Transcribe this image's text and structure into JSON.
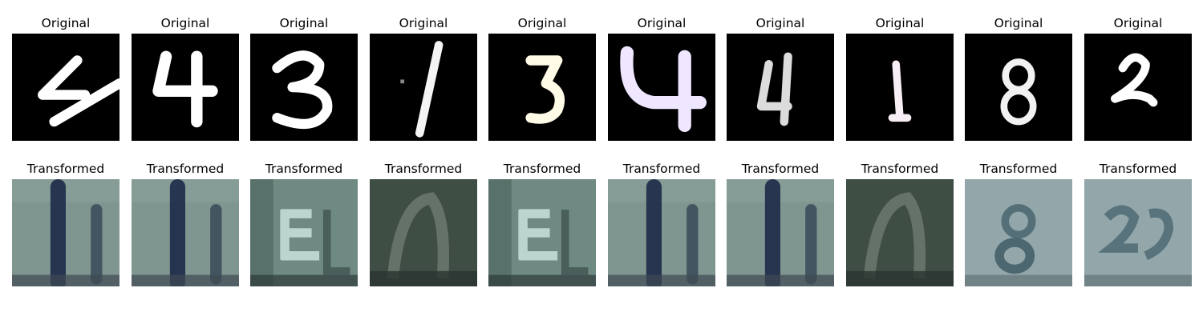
{
  "figure": {
    "rows": [
      {
        "row": "original",
        "panels": [
          {
            "title": "Original",
            "digit": "4",
            "color": "#ffffff"
          },
          {
            "title": "Original",
            "digit": "4",
            "color": "#ffffff"
          },
          {
            "title": "Original",
            "digit": "3",
            "color": "#ffffff"
          },
          {
            "title": "Original",
            "digit": "1",
            "color": "#f4f4f4"
          },
          {
            "title": "Original",
            "digit": "3",
            "color": "#fffbe6"
          },
          {
            "title": "Original",
            "digit": "4",
            "color": "#efe6ff"
          },
          {
            "title": "Original",
            "digit": "4",
            "color": "#dcdcdc"
          },
          {
            "title": "Original",
            "digit": "1",
            "color": "#f8eef6"
          },
          {
            "title": "Original",
            "digit": "8",
            "color": "#f2f2f2"
          },
          {
            "title": "Original",
            "digit": "2",
            "color": "#ffffff"
          }
        ]
      },
      {
        "row": "transformed",
        "panels": [
          {
            "title": "Transformed",
            "bg": "#7f9590",
            "ink": "#1d2a4a"
          },
          {
            "title": "Transformed",
            "bg": "#7f9590",
            "ink": "#1d2a4a"
          },
          {
            "title": "Transformed",
            "bg": "#6f8a82",
            "ink": "#c9e4dc"
          },
          {
            "title": "Transformed",
            "bg": "#3f4e45",
            "ink": "#6f7c70"
          },
          {
            "title": "Transformed",
            "bg": "#6f8a82",
            "ink": "#c9e4dc"
          },
          {
            "title": "Transformed",
            "bg": "#7f9590",
            "ink": "#1d2a4a"
          },
          {
            "title": "Transformed",
            "bg": "#7f9590",
            "ink": "#1d2a4a"
          },
          {
            "title": "Transformed",
            "bg": "#3f4e45",
            "ink": "#6f7c70"
          },
          {
            "title": "Transformed",
            "bg": "#93a7aa",
            "ink": "#3f5c66"
          },
          {
            "title": "Transformed",
            "bg": "#93a7aa",
            "ink": "#4a6670"
          }
        ]
      }
    ]
  }
}
